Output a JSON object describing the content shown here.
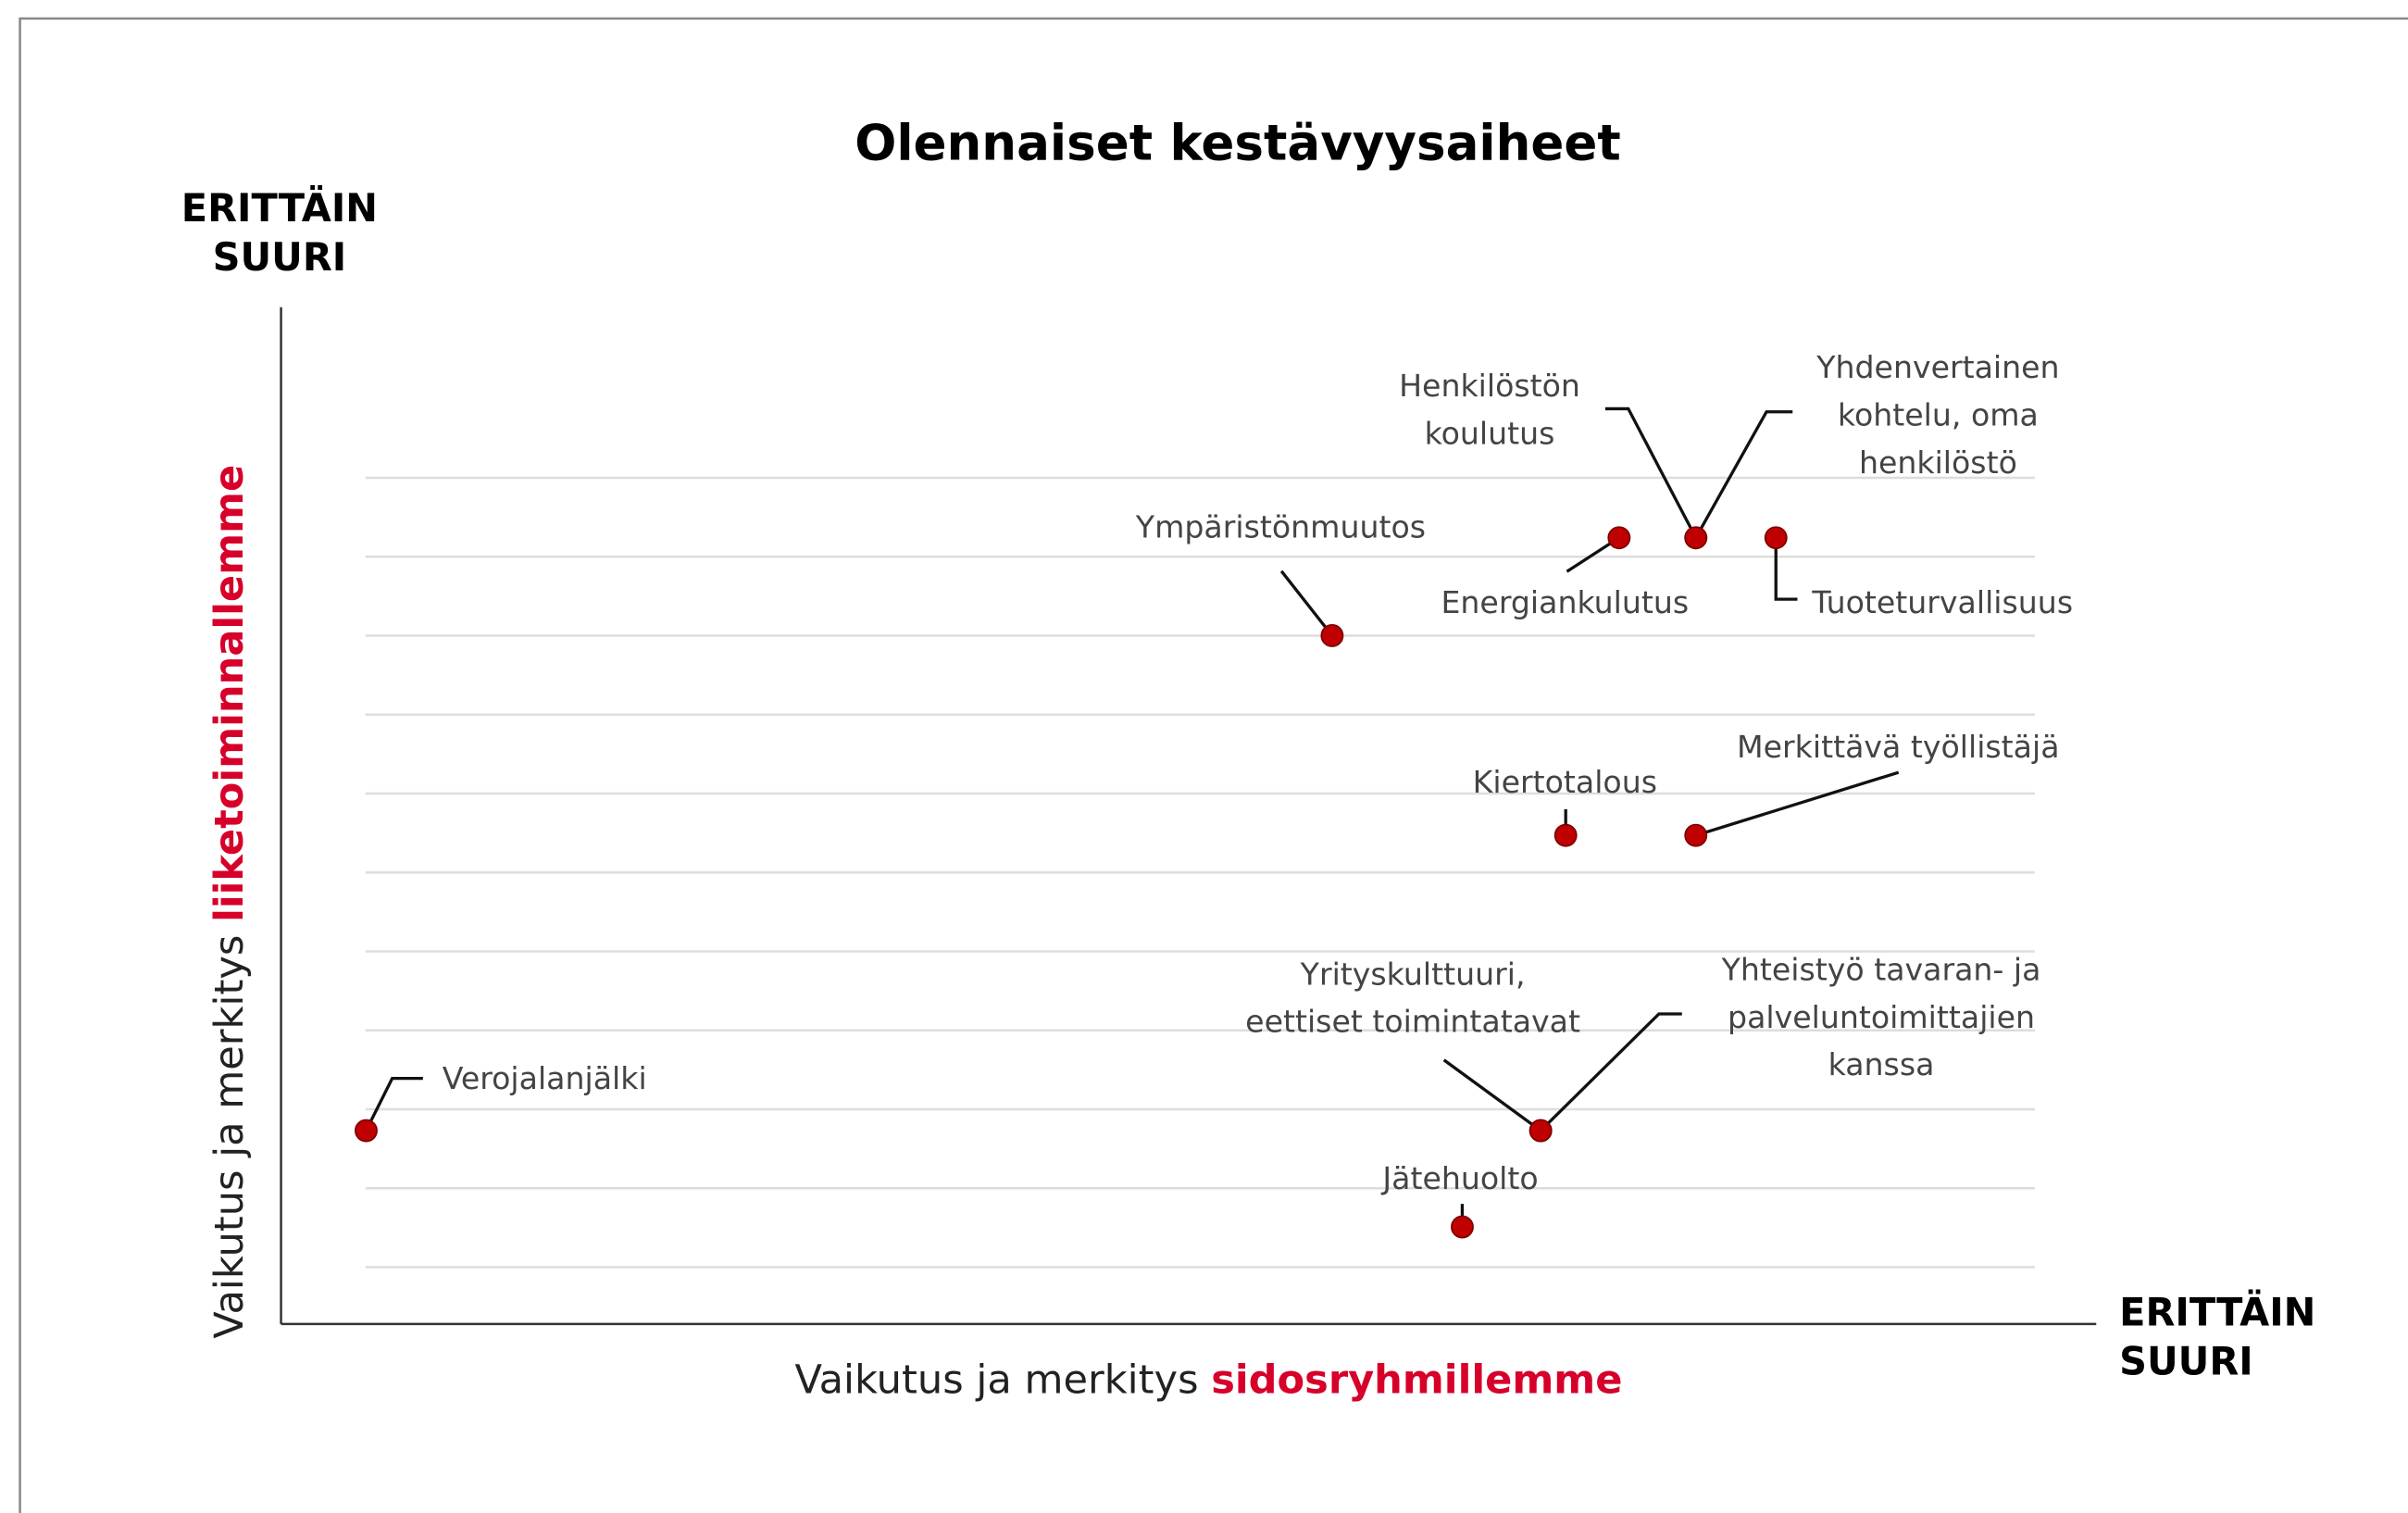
{
  "chart_data": {
    "type": "scatter",
    "title": "Olennaiset kestävyysaiheet",
    "top_label": [
      "ERITTÄIN",
      "SUURI"
    ],
    "right_label": [
      "ERITTÄIN",
      "SUURI"
    ],
    "y_label": {
      "plain": "Vaikutus ja merkitys",
      "highlight": "liiketoiminnallemme"
    },
    "x_label": {
      "plain": "Vaikutus ja merkitys",
      "highlight": "sidosryhmillemme"
    },
    "color": "#c00000",
    "highlight_color": "#d6002a",
    "grid": true,
    "xlim": [
      -0.51,
      10.37
    ],
    "ylim": [
      -0.72,
      12.16
    ],
    "yticks": [
      0,
      1,
      2,
      3,
      4,
      5,
      6,
      7,
      8,
      9,
      10
    ],
    "labels": [
      [
        "Verojalanjälki"
      ],
      [
        "Jätehuolto"
      ],
      [
        "Yrityskulttuuri,",
        "eettiset toimintatavat"
      ],
      [
        "Yhteistyö tavaran- ja",
        "palveluntoimittajien",
        "kanssa"
      ],
      [
        "Kiertotalous"
      ],
      [
        "Merkittävä työllistäjä"
      ],
      [
        "Ympäristönmuutos"
      ],
      [
        "Energiankulutus"
      ],
      [
        "Henkilöstön",
        "koulutus"
      ],
      [
        "Yhdenvertainen",
        "kohtelu, oma",
        "henkilöstö"
      ],
      [
        "Tuoteturvallisuus"
      ]
    ],
    "x": [
      0,
      6.57,
      7.04,
      7.04,
      7.19,
      7.97,
      5.79,
      7.51,
      7.97,
      7.97,
      8.45
    ],
    "values": [
      1.73,
      0.51,
      1.73,
      1.73,
      5.47,
      5.47,
      8.0,
      9.24,
      9.24,
      9.24,
      9.24
    ]
  }
}
